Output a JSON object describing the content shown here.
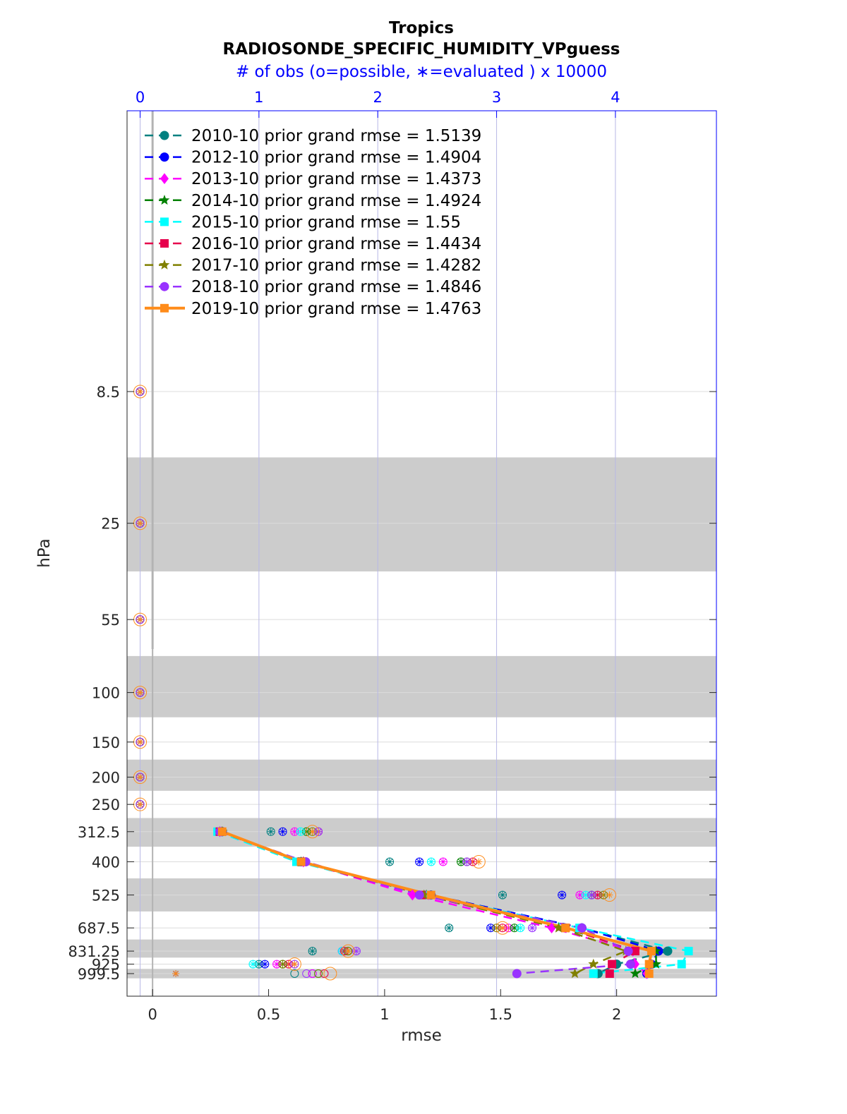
{
  "chart_data": {
    "type": "line",
    "title": "Tropics",
    "subtitle": "RADIOSONDE_SPECIFIC_HUMIDITY_VPguess",
    "top_axis_label": "# of obs (o=possible, ∗=evaluated ) x 10000",
    "xlabel": "rmse",
    "ylabel": "hPa",
    "xlim": [
      -0.11,
      2.43
    ],
    "x_ticks": [
      "0",
      "0.5",
      "1",
      "1.5",
      "2"
    ],
    "top_xlim": [
      -0.11,
      4.85
    ],
    "top_ticks": [
      "0",
      "1",
      "2",
      "3",
      "4"
    ],
    "levels": [
      8.5,
      25,
      55,
      100,
      150,
      200,
      250,
      312.5,
      400,
      525,
      687.5,
      831.25,
      925,
      999.5
    ],
    "level_labels": [
      "8.5",
      "25",
      "55",
      "100",
      "150",
      "200",
      "250",
      "312.5",
      "400",
      "525",
      "687.5",
      "831.25",
      "925",
      "999.5"
    ],
    "y_scale": "log, inverted",
    "grid": true,
    "legend_position": "top-left",
    "series": [
      {
        "name": "2010-10 prior grand rmse = 1.5139",
        "color": "#008080",
        "marker": "circle",
        "style": "dashed",
        "rmse": [
          null,
          null,
          null,
          null,
          null,
          null,
          null,
          0.3,
          0.63,
          1.2,
          1.85,
          2.22,
          2.0,
          1.92
        ],
        "possible": [
          0,
          0,
          0,
          0,
          0,
          0,
          0,
          1.1,
          2.1,
          3.05,
          2.6,
          1.45,
          1.0,
          1.3
        ],
        "evaluated": [
          0,
          0,
          0,
          0,
          0,
          0,
          0,
          1.1,
          2.1,
          3.05,
          2.6,
          1.45,
          1.0,
          0.3
        ]
      },
      {
        "name": "2012-10 prior grand rmse = 1.4904",
        "color": "#0000ff",
        "marker": "circle",
        "style": "dashed",
        "rmse": [
          null,
          null,
          null,
          null,
          null,
          null,
          null,
          0.3,
          0.64,
          1.2,
          1.85,
          2.18,
          2.15,
          2.13
        ],
        "possible": [
          0,
          0,
          0,
          0,
          0,
          0,
          0,
          1.2,
          2.35,
          3.55,
          2.95,
          1.7,
          1.05,
          1.45
        ],
        "evaluated": [
          0,
          0,
          0,
          0,
          0,
          0,
          0,
          1.2,
          2.35,
          3.55,
          2.95,
          1.7,
          1.05,
          0.3
        ]
      },
      {
        "name": "2013-10 prior grand rmse = 1.4373",
        "color": "#ff00ff",
        "marker": "diamond",
        "style": "dashed",
        "rmse": [
          null,
          null,
          null,
          null,
          null,
          null,
          null,
          0.29,
          0.65,
          1.12,
          1.72,
          2.07,
          2.08,
          2.13
        ],
        "possible": [
          0,
          0,
          0,
          0,
          0,
          0,
          0,
          1.3,
          2.55,
          3.7,
          3.1,
          1.7,
          1.15,
          1.45
        ],
        "evaluated": [
          0,
          0,
          0,
          0,
          0,
          0,
          0,
          1.3,
          2.55,
          3.7,
          3.1,
          1.7,
          1.15,
          0.3
        ]
      },
      {
        "name": "2014-10 prior grand rmse = 1.4924",
        "color": "#008000",
        "marker": "star",
        "style": "dashed",
        "rmse": [
          null,
          null,
          null,
          null,
          null,
          null,
          null,
          0.3,
          0.64,
          1.18,
          1.75,
          2.17,
          2.17,
          2.08
        ],
        "possible": [
          0,
          0,
          0,
          0,
          0,
          0,
          0,
          1.4,
          2.7,
          3.8,
          3.15,
          1.75,
          1.2,
          1.5
        ],
        "evaluated": [
          0,
          0,
          0,
          0,
          0,
          0,
          0,
          1.4,
          2.7,
          3.8,
          3.15,
          1.75,
          1.2,
          0.3
        ]
      },
      {
        "name": "2015-10 prior grand rmse = 1.55",
        "color": "#00ffff",
        "marker": "square",
        "style": "dashed",
        "rmse": [
          null,
          null,
          null,
          null,
          null,
          null,
          null,
          0.28,
          0.62,
          1.19,
          1.84,
          2.31,
          2.28,
          1.9
        ],
        "possible": [
          0,
          0,
          0,
          0,
          0,
          0,
          0,
          1.35,
          2.45,
          3.75,
          3.2,
          1.7,
          0.95,
          1.5
        ],
        "evaluated": [
          0,
          0,
          0,
          0,
          0,
          0,
          0,
          1.35,
          2.45,
          3.75,
          3.2,
          1.7,
          0.95,
          0.3
        ]
      },
      {
        "name": "2016-10 prior grand rmse = 1.4434",
        "color": "#e6004c",
        "marker": "square",
        "style": "dashed",
        "rmse": [
          null,
          null,
          null,
          null,
          null,
          null,
          null,
          0.29,
          0.64,
          1.16,
          1.78,
          2.08,
          1.98,
          1.97
        ],
        "possible": [
          0,
          0,
          0,
          0,
          0,
          0,
          0,
          1.5,
          2.8,
          3.85,
          3.05,
          1.72,
          1.25,
          1.55
        ],
        "evaluated": [
          0,
          0,
          0,
          0,
          0,
          0,
          0,
          1.5,
          2.8,
          3.85,
          3.05,
          1.72,
          1.25,
          0.3
        ]
      },
      {
        "name": "2017-10 prior grand rmse = 1.4282",
        "color": "#808000",
        "marker": "star",
        "style": "dashed",
        "rmse": [
          null,
          null,
          null,
          null,
          null,
          null,
          null,
          0.3,
          0.65,
          1.17,
          1.75,
          2.04,
          1.9,
          1.82
        ],
        "possible": [
          0,
          0,
          0,
          0,
          0,
          0,
          0,
          1.45,
          2.75,
          3.9,
          3.0,
          1.75,
          1.2,
          1.5
        ],
        "evaluated": [
          0,
          0,
          0,
          0,
          0,
          0,
          0,
          1.45,
          2.75,
          3.9,
          3.0,
          1.75,
          1.2,
          0.3
        ]
      },
      {
        "name": "2018-10 prior grand rmse = 1.4846",
        "color": "#9933ff",
        "marker": "circle",
        "style": "dashed",
        "rmse": [
          null,
          null,
          null,
          null,
          null,
          null,
          null,
          0.29,
          0.66,
          1.15,
          1.85,
          2.05,
          2.06,
          1.57
        ],
        "possible": [
          0,
          0,
          0,
          0,
          0,
          0,
          0,
          1.5,
          2.75,
          3.8,
          3.3,
          1.82,
          1.3,
          1.4
        ],
        "evaluated": [
          0,
          0,
          0,
          0,
          0,
          0,
          0,
          1.5,
          2.75,
          3.8,
          3.3,
          1.82,
          1.3,
          0.3
        ]
      },
      {
        "name": "2019-10 prior grand rmse = 1.4763",
        "color": "#ff8c1a",
        "marker": "square",
        "style": "solid",
        "rmse": [
          null,
          null,
          null,
          null,
          null,
          null,
          null,
          0.3,
          0.64,
          1.2,
          1.78,
          2.15,
          2.14,
          2.14
        ],
        "possible": [
          0,
          0,
          0,
          0,
          0,
          0,
          0,
          1.45,
          2.85,
          3.95,
          3.05,
          1.75,
          1.3,
          1.6
        ],
        "evaluated": [
          0,
          0,
          0,
          0,
          0,
          0,
          0,
          1.45,
          2.85,
          3.95,
          3.05,
          1.75,
          1.3,
          0.3
        ]
      }
    ]
  }
}
